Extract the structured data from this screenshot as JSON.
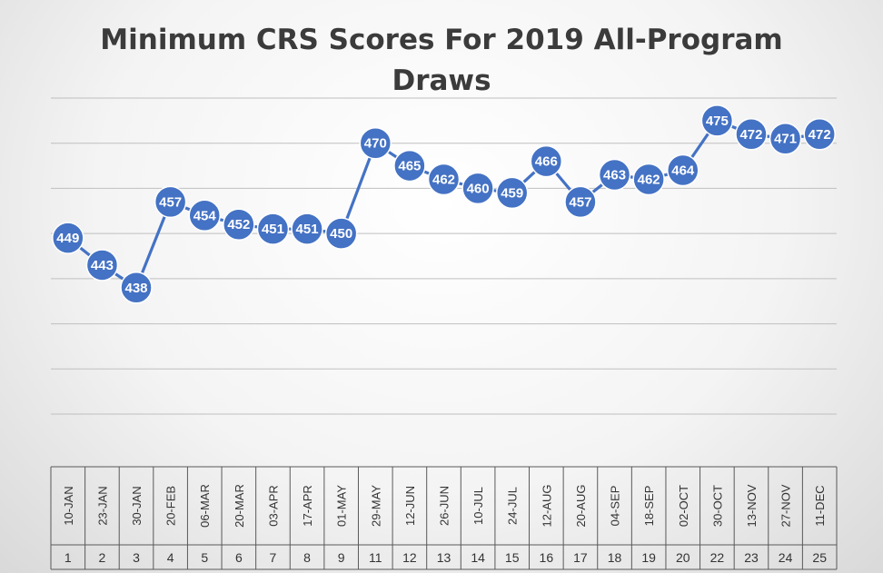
{
  "chart_data": {
    "type": "line",
    "title": "Minimum CRS Scores For 2019 All-Program Draws",
    "title_lines": [
      "Minimum CRS Scores For 2019 All-Program",
      "Draws"
    ],
    "xlabel": "",
    "ylabel": "",
    "ylim": [
      410,
      480
    ],
    "grid": true,
    "legend": "none",
    "line_color": "#4472c4",
    "categories": [
      {
        "date": "10-JAN",
        "num": "1"
      },
      {
        "date": "23-JAN",
        "num": "2"
      },
      {
        "date": "30-JAN",
        "num": "3"
      },
      {
        "date": "20-FEB",
        "num": "4"
      },
      {
        "date": "06-MAR",
        "num": "5"
      },
      {
        "date": "20-MAR",
        "num": "6"
      },
      {
        "date": "03-APR",
        "num": "7"
      },
      {
        "date": "17-APR",
        "num": "8"
      },
      {
        "date": "01-MAY",
        "num": "9"
      },
      {
        "date": "29-MAY",
        "num": "11"
      },
      {
        "date": "12-JUN",
        "num": "12"
      },
      {
        "date": "26-JUN",
        "num": "13"
      },
      {
        "date": "10-JUL",
        "num": "14"
      },
      {
        "date": "24-JUL",
        "num": "15"
      },
      {
        "date": "12-AUG",
        "num": "16"
      },
      {
        "date": "20-AUG",
        "num": "17"
      },
      {
        "date": "04-SEP",
        "num": "18"
      },
      {
        "date": "18-SEP",
        "num": "19"
      },
      {
        "date": "02-OCT",
        "num": "20"
      },
      {
        "date": "30-OCT",
        "num": "22"
      },
      {
        "date": "13-NOV",
        "num": "23"
      },
      {
        "date": "27-NOV",
        "num": "24"
      },
      {
        "date": "11-DEC",
        "num": "25"
      }
    ],
    "values": [
      449,
      443,
      438,
      457,
      454,
      452,
      451,
      451,
      450,
      470,
      465,
      462,
      460,
      459,
      466,
      457,
      463,
      462,
      464,
      475,
      472,
      471,
      472
    ]
  }
}
